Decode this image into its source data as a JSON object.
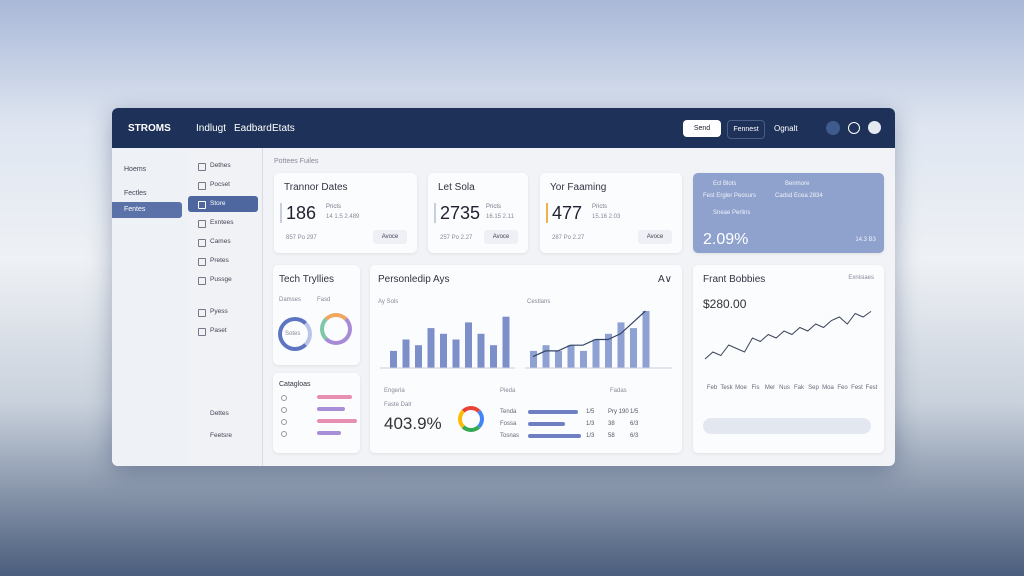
{
  "header": {
    "brand": "STROMS",
    "nav": [
      "Indlugt",
      "Eadbard",
      "Etats"
    ],
    "button": "Send",
    "links": [
      "Fennest",
      "Ognalt"
    ]
  },
  "sidebar": {
    "items": [
      "Hoems",
      "Fectles",
      "Fentes"
    ],
    "active": 2
  },
  "menu": {
    "items": [
      "Dethes",
      "Pocset",
      "Store",
      "Exntees",
      "Cames",
      "Pretes",
      "Pussge",
      "Pyess",
      "Paset"
    ],
    "bottom": [
      "Dettes",
      "Feetsre"
    ],
    "active": 2
  },
  "breadcrumb": "Pottees Fuiles",
  "cards": [
    {
      "title": "Trannor Dates",
      "value": "186",
      "note": "Pricts",
      "sub": "14 1.5 2.489",
      "foot": "857 Po 297",
      "action": "Avoce"
    },
    {
      "title": "Let Sola",
      "value": "2735",
      "note": "Pricts",
      "sub": "16.15 2.11",
      "foot": "257 Po 2.27",
      "action": "Avoce"
    },
    {
      "title": "Yor Faaming",
      "value": "477",
      "note": "Pricts",
      "sub": "15.16 2.03",
      "foot": "287 Po 2.27",
      "action": "Avoce"
    }
  ],
  "highlight": {
    "labels": [
      "Ecl Blots",
      "Benmore",
      "Fest Ergler Peosurs",
      "Cadsd Ecea 2834",
      "Sneae Perlins"
    ],
    "value": "2.09%",
    "note": "14.3 B3"
  },
  "tech": {
    "title": "Tech Tryllies",
    "tabs": [
      "Damses",
      "Fasd"
    ],
    "donut": "Sotes"
  },
  "categories": {
    "title": "Catagloas",
    "values": [
      70,
      55,
      80,
      48
    ]
  },
  "personality": {
    "title": "Personledip Ays",
    "controls": "A∨",
    "left_label": "Ay Sols",
    "right_label": "Cestlans",
    "left_values": [
      3,
      5,
      4,
      7,
      6,
      5,
      8,
      6,
      4,
      9
    ],
    "right_values": [
      3,
      4,
      3,
      4,
      3,
      5,
      6,
      8,
      7,
      10
    ],
    "right_line": [
      2,
      3,
      3,
      4,
      4,
      5,
      5,
      6,
      8,
      10
    ],
    "stat_label": "Engerla",
    "stat_sub": "Faste Dalr",
    "stat": "403.9%",
    "table_heads": [
      "Pieda",
      "Fadas"
    ],
    "rows": [
      {
        "name": "Tenda",
        "bar": 80,
        "cells": [
          "1/5",
          "Pry 190",
          "1/5"
        ]
      },
      {
        "name": "Fossa",
        "bar": 60,
        "cells": [
          "1/3",
          "38",
          "6/3"
        ]
      },
      {
        "name": "Tosnas",
        "bar": 85,
        "cells": [
          "1/3",
          "58",
          "6/3"
        ]
      }
    ]
  },
  "frant": {
    "title": "Frant Bobbies",
    "menu": "Exnisiaes",
    "value": "$280.00",
    "line": [
      3,
      4,
      3.5,
      5,
      4.5,
      4,
      6,
      5.5,
      6.5,
      6,
      7,
      6.5,
      7.5,
      7,
      8,
      7.5,
      8.5,
      9,
      8,
      9.5,
      9,
      9.8
    ],
    "x": [
      "Feb",
      "Tesk",
      "Moe",
      "Fis",
      "Mer",
      "Nus",
      "Fak",
      "Sep",
      "Moa",
      "Feo",
      "Fest",
      "Fest"
    ]
  }
}
